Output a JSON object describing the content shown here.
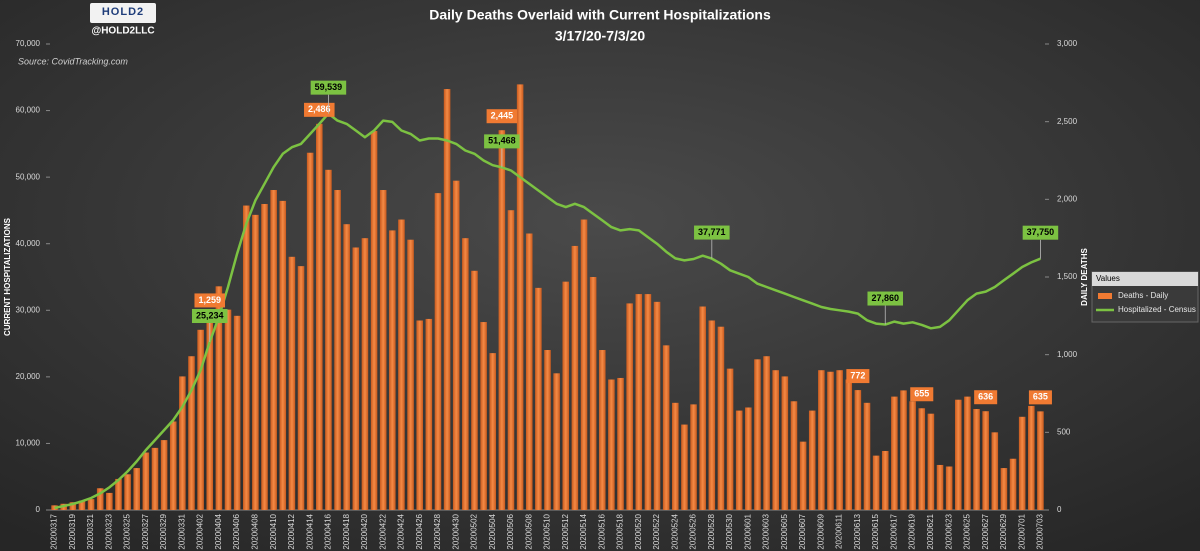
{
  "chart_data": {
    "type": "bar-line",
    "logo": "HOLD2",
    "handle": "@HOLD2LLC",
    "title": "Daily Deaths Overlaid with Current Hospitalizations",
    "subtitle": "3/17/20-7/3/20",
    "source": "Source: CovidTracking.com",
    "ylabel": "CURRENT HOSPITALIZATIONS",
    "y2label": "DAILY DEATHS",
    "legend_title": "Values",
    "legend": "right",
    "categories": [
      "20200317",
      null,
      "20200319",
      null,
      "20200321",
      null,
      "20200323",
      null,
      "20200325",
      null,
      "20200327",
      null,
      "20200329",
      null,
      "20200331",
      null,
      "20200402",
      null,
      "20200404",
      null,
      "20200406",
      null,
      "20200408",
      null,
      "20200410",
      null,
      "20200412",
      null,
      "20200414",
      null,
      "20200416",
      null,
      "20200418",
      null,
      "20200420",
      null,
      "20200422",
      null,
      "20200424",
      null,
      "20200426",
      null,
      "20200428",
      null,
      "20200430",
      null,
      "20200502",
      null,
      "20200504",
      null,
      "20200506",
      null,
      "20200508",
      null,
      "20200510",
      null,
      "20200512",
      null,
      "20200514",
      null,
      "20200516",
      null,
      "20200518",
      null,
      "20200520",
      null,
      "20200522",
      null,
      "20200524",
      null,
      "20200526",
      null,
      "20200528",
      null,
      "20200530",
      null,
      "20200601",
      null,
      "20200603",
      null,
      "20200605",
      null,
      "20200607",
      null,
      "20200609",
      null,
      "20200611",
      null,
      "20200613",
      null,
      "20200615",
      null,
      "20200617",
      null,
      "20200619",
      null,
      "20200621",
      null,
      "20200623",
      null,
      "20200625",
      null,
      "20200627",
      null,
      "20200629",
      null,
      "20200701",
      null,
      "20200703"
    ],
    "ylim": [
      0,
      70000
    ],
    "yticks": [
      0,
      {
        "value": 10000,
        "label": "10,000"
      },
      {
        "value": 20000,
        "label": "20,000"
      },
      {
        "value": 30000,
        "label": "30,000"
      },
      {
        "value": 40000,
        "label": "40,000"
      },
      {
        "value": 50000,
        "label": "50,000"
      },
      {
        "value": 60000,
        "label": "60,000"
      },
      {
        "value": 70000,
        "label": "70,000"
      }
    ],
    "y2lim": [
      0,
      3000
    ],
    "y2ticks": [
      0,
      500,
      {
        "value": 1000,
        "label": "1,000"
      },
      {
        "value": 1500,
        "label": "1,500"
      },
      {
        "value": 2000,
        "label": "2,000"
      },
      {
        "value": 2500,
        "label": "2,500"
      },
      {
        "value": 3000,
        "label": "3,000"
      }
    ],
    "grid": false,
    "series": [
      {
        "name": "Deaths - Daily",
        "kind": "bar",
        "axis": "y2",
        "color": "#f07a32",
        "values": [
          30,
          40,
          50,
          60,
          70,
          140,
          110,
          200,
          230,
          270,
          370,
          400,
          450,
          570,
          860,
          990,
          1160,
          1259,
          1440,
          1290,
          1250,
          1960,
          1900,
          1970,
          2060,
          1990,
          1630,
          1570,
          2300,
          2486,
          2190,
          2060,
          1840,
          1690,
          1750,
          2440,
          2060,
          1800,
          1870,
          1740,
          1220,
          1230,
          2040,
          2710,
          2120,
          1750,
          1540,
          1210,
          1010,
          2445,
          1930,
          2740,
          1780,
          1430,
          1030,
          880,
          1470,
          1700,
          1870,
          1500,
          1030,
          840,
          850,
          1330,
          1390,
          1390,
          1340,
          1060,
          690,
          550,
          680,
          1310,
          1220,
          1180,
          910,
          640,
          660,
          970,
          990,
          900,
          860,
          700,
          440,
          640,
          900,
          890,
          900,
          840,
          772,
          690,
          350,
          380,
          730,
          770,
          700,
          655,
          620,
          290,
          280,
          710,
          730,
          650,
          636,
          500,
          270,
          330,
          600,
          670,
          635
        ],
        "value_labels": [
          null,
          null,
          null,
          null,
          null,
          null,
          null,
          null,
          null,
          null,
          null,
          null,
          null,
          null,
          null,
          null,
          null,
          "1,259",
          null,
          null,
          null,
          null,
          null,
          null,
          null,
          null,
          null,
          null,
          null,
          "2,486",
          null,
          null,
          null,
          null,
          null,
          null,
          null,
          null,
          null,
          null,
          null,
          null,
          null,
          null,
          null,
          null,
          null,
          null,
          null,
          "2,445",
          null,
          null,
          null,
          null,
          null,
          null,
          null,
          null,
          null,
          null,
          null,
          null,
          null,
          null,
          null,
          null,
          null,
          null,
          null,
          null,
          null,
          null,
          null,
          null,
          null,
          null,
          null,
          null,
          null,
          null,
          null,
          null,
          null,
          null,
          null,
          null,
          null,
          null,
          "772",
          null,
          null,
          null,
          null,
          null,
          null,
          "655",
          null,
          null,
          null,
          null,
          null,
          null,
          "636",
          null,
          null,
          null,
          null,
          null,
          "635"
        ]
      },
      {
        "name": "Hospitalized - Census",
        "kind": "line",
        "axis": "y",
        "color": "#7cc242",
        "values": [
          300,
          600,
          900,
          1300,
          1800,
          2500,
          3400,
          4500,
          5800,
          7300,
          9000,
          10500,
          12000,
          13500,
          15500,
          18000,
          21000,
          25234,
          29000,
          33500,
          38500,
          43000,
          46500,
          49000,
          51500,
          53500,
          54500,
          55000,
          56500,
          58000,
          59539,
          58500,
          58000,
          57000,
          56000,
          57000,
          58500,
          58300,
          57000,
          56500,
          55500,
          55800,
          55800,
          55500,
          55000,
          54000,
          53500,
          52500,
          51800,
          51468,
          51000,
          50000,
          49000,
          48000,
          47000,
          46000,
          45500,
          46000,
          45500,
          44500,
          43500,
          42500,
          42000,
          42200,
          42000,
          41000,
          40000,
          38800,
          37800,
          37500,
          37700,
          38200,
          37771,
          37000,
          36000,
          35500,
          35000,
          34000,
          33500,
          33000,
          32500,
          32000,
          31500,
          31000,
          30500,
          30200,
          30000,
          29800,
          29500,
          28500,
          28000,
          27860,
          28300,
          28000,
          28200,
          27800,
          27300,
          27500,
          28500,
          30000,
          31500,
          32500,
          32800,
          33500,
          34500,
          35500,
          36500,
          37200,
          37750
        ],
        "value_labels": [
          null,
          null,
          null,
          null,
          null,
          null,
          null,
          null,
          null,
          null,
          null,
          null,
          null,
          null,
          null,
          null,
          null,
          "25,234",
          null,
          null,
          null,
          null,
          null,
          null,
          null,
          null,
          null,
          null,
          null,
          null,
          "59,539",
          null,
          null,
          null,
          null,
          null,
          null,
          null,
          null,
          null,
          null,
          null,
          null,
          null,
          null,
          null,
          null,
          null,
          null,
          "51,468",
          null,
          null,
          null,
          null,
          null,
          null,
          null,
          null,
          null,
          null,
          null,
          null,
          null,
          null,
          null,
          null,
          null,
          null,
          null,
          null,
          null,
          null,
          "37,771",
          null,
          null,
          null,
          null,
          null,
          null,
          null,
          null,
          null,
          null,
          null,
          null,
          null,
          null,
          null,
          null,
          null,
          null,
          "27,860",
          null,
          null,
          null,
          null,
          null,
          null,
          null,
          null,
          null,
          null,
          null,
          null,
          null,
          null,
          null,
          null,
          "37,750"
        ]
      }
    ]
  }
}
